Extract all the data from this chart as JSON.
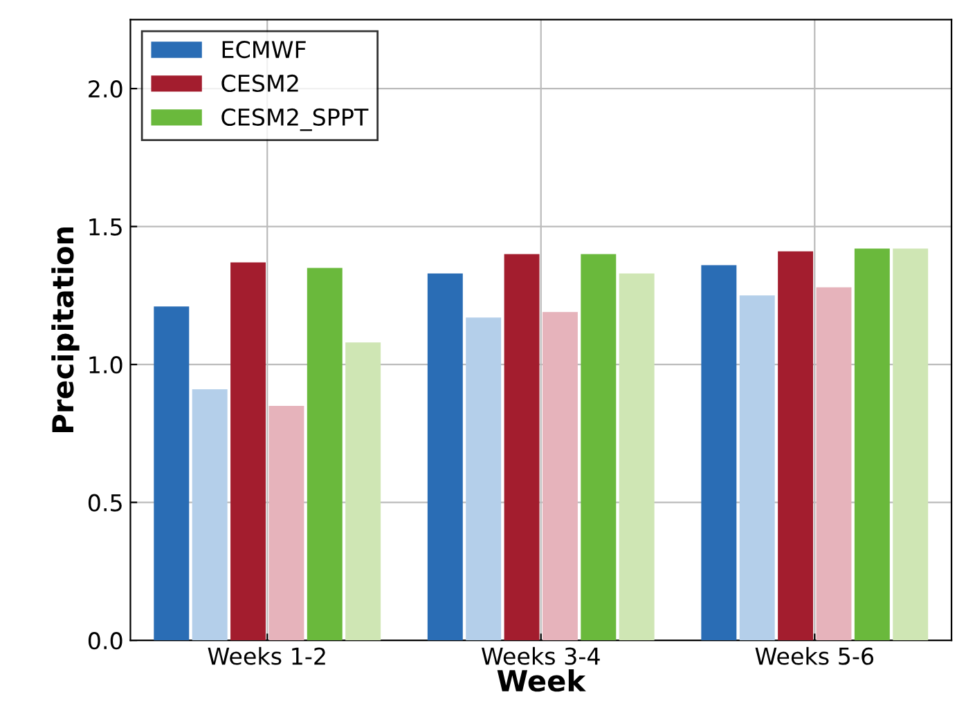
{
  "chart_data": {
    "type": "bar",
    "xlabel": "Week",
    "ylabel": "Precipitation",
    "categories": [
      "Weeks 1-2",
      "Weeks 3-4",
      "Weeks 5-6"
    ],
    "series": [
      {
        "name": "ECMWF",
        "color": "#2a6db5",
        "values": [
          1.21,
          1.33,
          1.36
        ]
      },
      {
        "color": "#b4cfea",
        "values": [
          0.91,
          1.17,
          1.25
        ]
      },
      {
        "name": "CESM2",
        "color": "#a31d2e",
        "values": [
          1.37,
          1.4,
          1.41
        ]
      },
      {
        "color": "#e6b3bb",
        "values": [
          0.85,
          1.19,
          1.28
        ]
      },
      {
        "name": "CESM2_SPPT",
        "color": "#6ab93c",
        "values": [
          1.35,
          1.4,
          1.42
        ]
      },
      {
        "color": "#cfe6b4",
        "values": [
          1.08,
          1.33,
          1.42
        ]
      }
    ],
    "ylim": [
      0,
      2.25
    ],
    "yticks": [
      {
        "value": 0,
        "label": "0.0"
      },
      {
        "value": 0.5,
        "label": "0.5"
      },
      {
        "value": 1,
        "label": "1.0"
      },
      {
        "value": 1.5,
        "label": "1.5"
      },
      {
        "value": 2,
        "label": "2.0"
      }
    ],
    "grid": true,
    "legend": "top left"
  }
}
